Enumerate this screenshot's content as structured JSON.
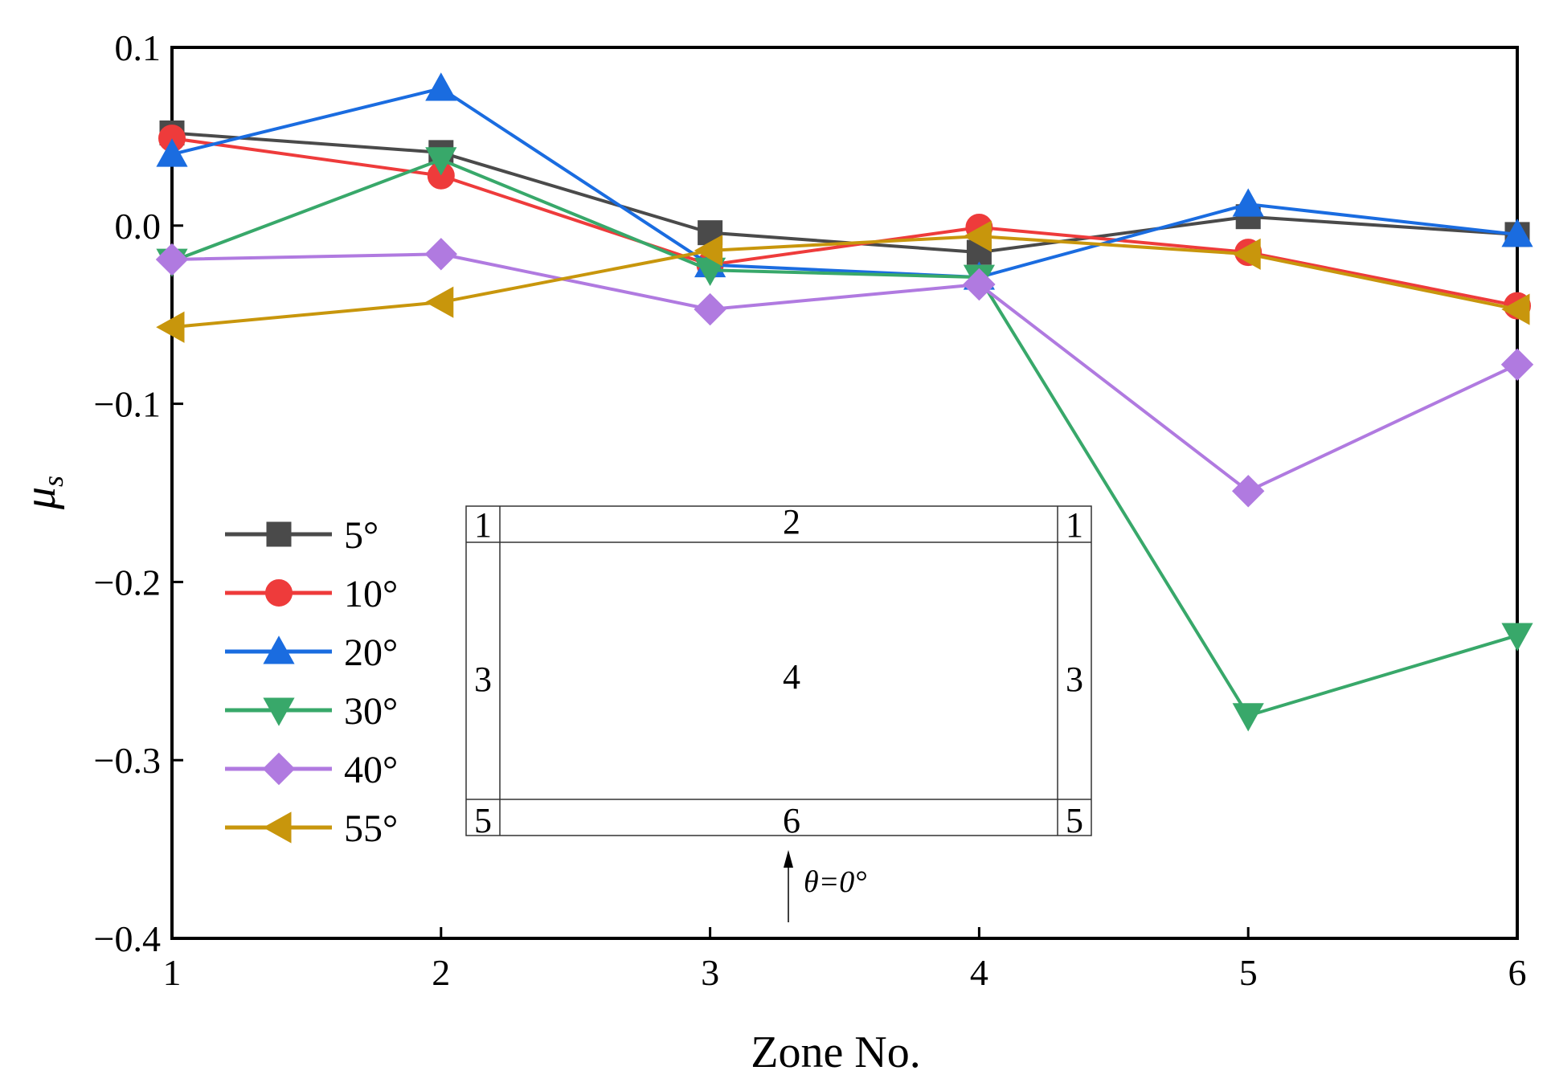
{
  "chart_data": {
    "type": "line",
    "title": "",
    "xlabel": "Zone No.",
    "ylabel": "μs",
    "ylabel_main": "μ",
    "ylabel_sub": "s",
    "x": [
      1,
      2,
      3,
      4,
      5,
      6
    ],
    "xlim": [
      1,
      6
    ],
    "ylim": [
      -0.4,
      0.1
    ],
    "xticks": [
      "1",
      "2",
      "3",
      "4",
      "5",
      "6"
    ],
    "yticks": [
      {
        "value": 0.1,
        "label": "0.1"
      },
      {
        "value": 0.0,
        "label": "0.0"
      },
      {
        "value": -0.1,
        "label": "−0.1"
      },
      {
        "value": -0.2,
        "label": "−0.2"
      },
      {
        "value": -0.3,
        "label": "−0.3"
      },
      {
        "value": -0.4,
        "label": "−0.4"
      }
    ],
    "grid": false,
    "legend_position": "left-middle",
    "series": [
      {
        "name": "5°",
        "marker": "square",
        "color": "#4a4a4a",
        "values": [
          0.052,
          0.041,
          -0.004,
          -0.015,
          0.005,
          -0.005
        ]
      },
      {
        "name": "10°",
        "marker": "circle",
        "color": "#ee3b3b",
        "values": [
          0.049,
          0.028,
          -0.022,
          -0.001,
          -0.015,
          -0.045
        ]
      },
      {
        "name": "20°",
        "marker": "triangle-up",
        "color": "#1a6ce0",
        "values": [
          0.04,
          0.077,
          -0.022,
          -0.029,
          0.012,
          -0.005
        ]
      },
      {
        "name": "30°",
        "marker": "triangle-down",
        "color": "#38a86a",
        "values": [
          -0.02,
          0.037,
          -0.025,
          -0.029,
          -0.275,
          -0.23
        ]
      },
      {
        "name": "40°",
        "marker": "diamond",
        "color": "#b07ae0",
        "values": [
          -0.019,
          -0.016,
          -0.047,
          -0.033,
          -0.149,
          -0.078
        ]
      },
      {
        "name": "55°",
        "marker": "triangle-left",
        "color": "#c8960c",
        "values": [
          -0.057,
          -0.043,
          -0.014,
          -0.006,
          -0.016,
          -0.047
        ]
      }
    ],
    "inset": {
      "zones_top": [
        "1",
        "2",
        "1"
      ],
      "zones_middle": [
        "3",
        "4",
        "3"
      ],
      "zones_bottom": [
        "5",
        "6",
        "5"
      ],
      "zone_color": "#ff0000",
      "direction_label": "θ=0°"
    }
  }
}
